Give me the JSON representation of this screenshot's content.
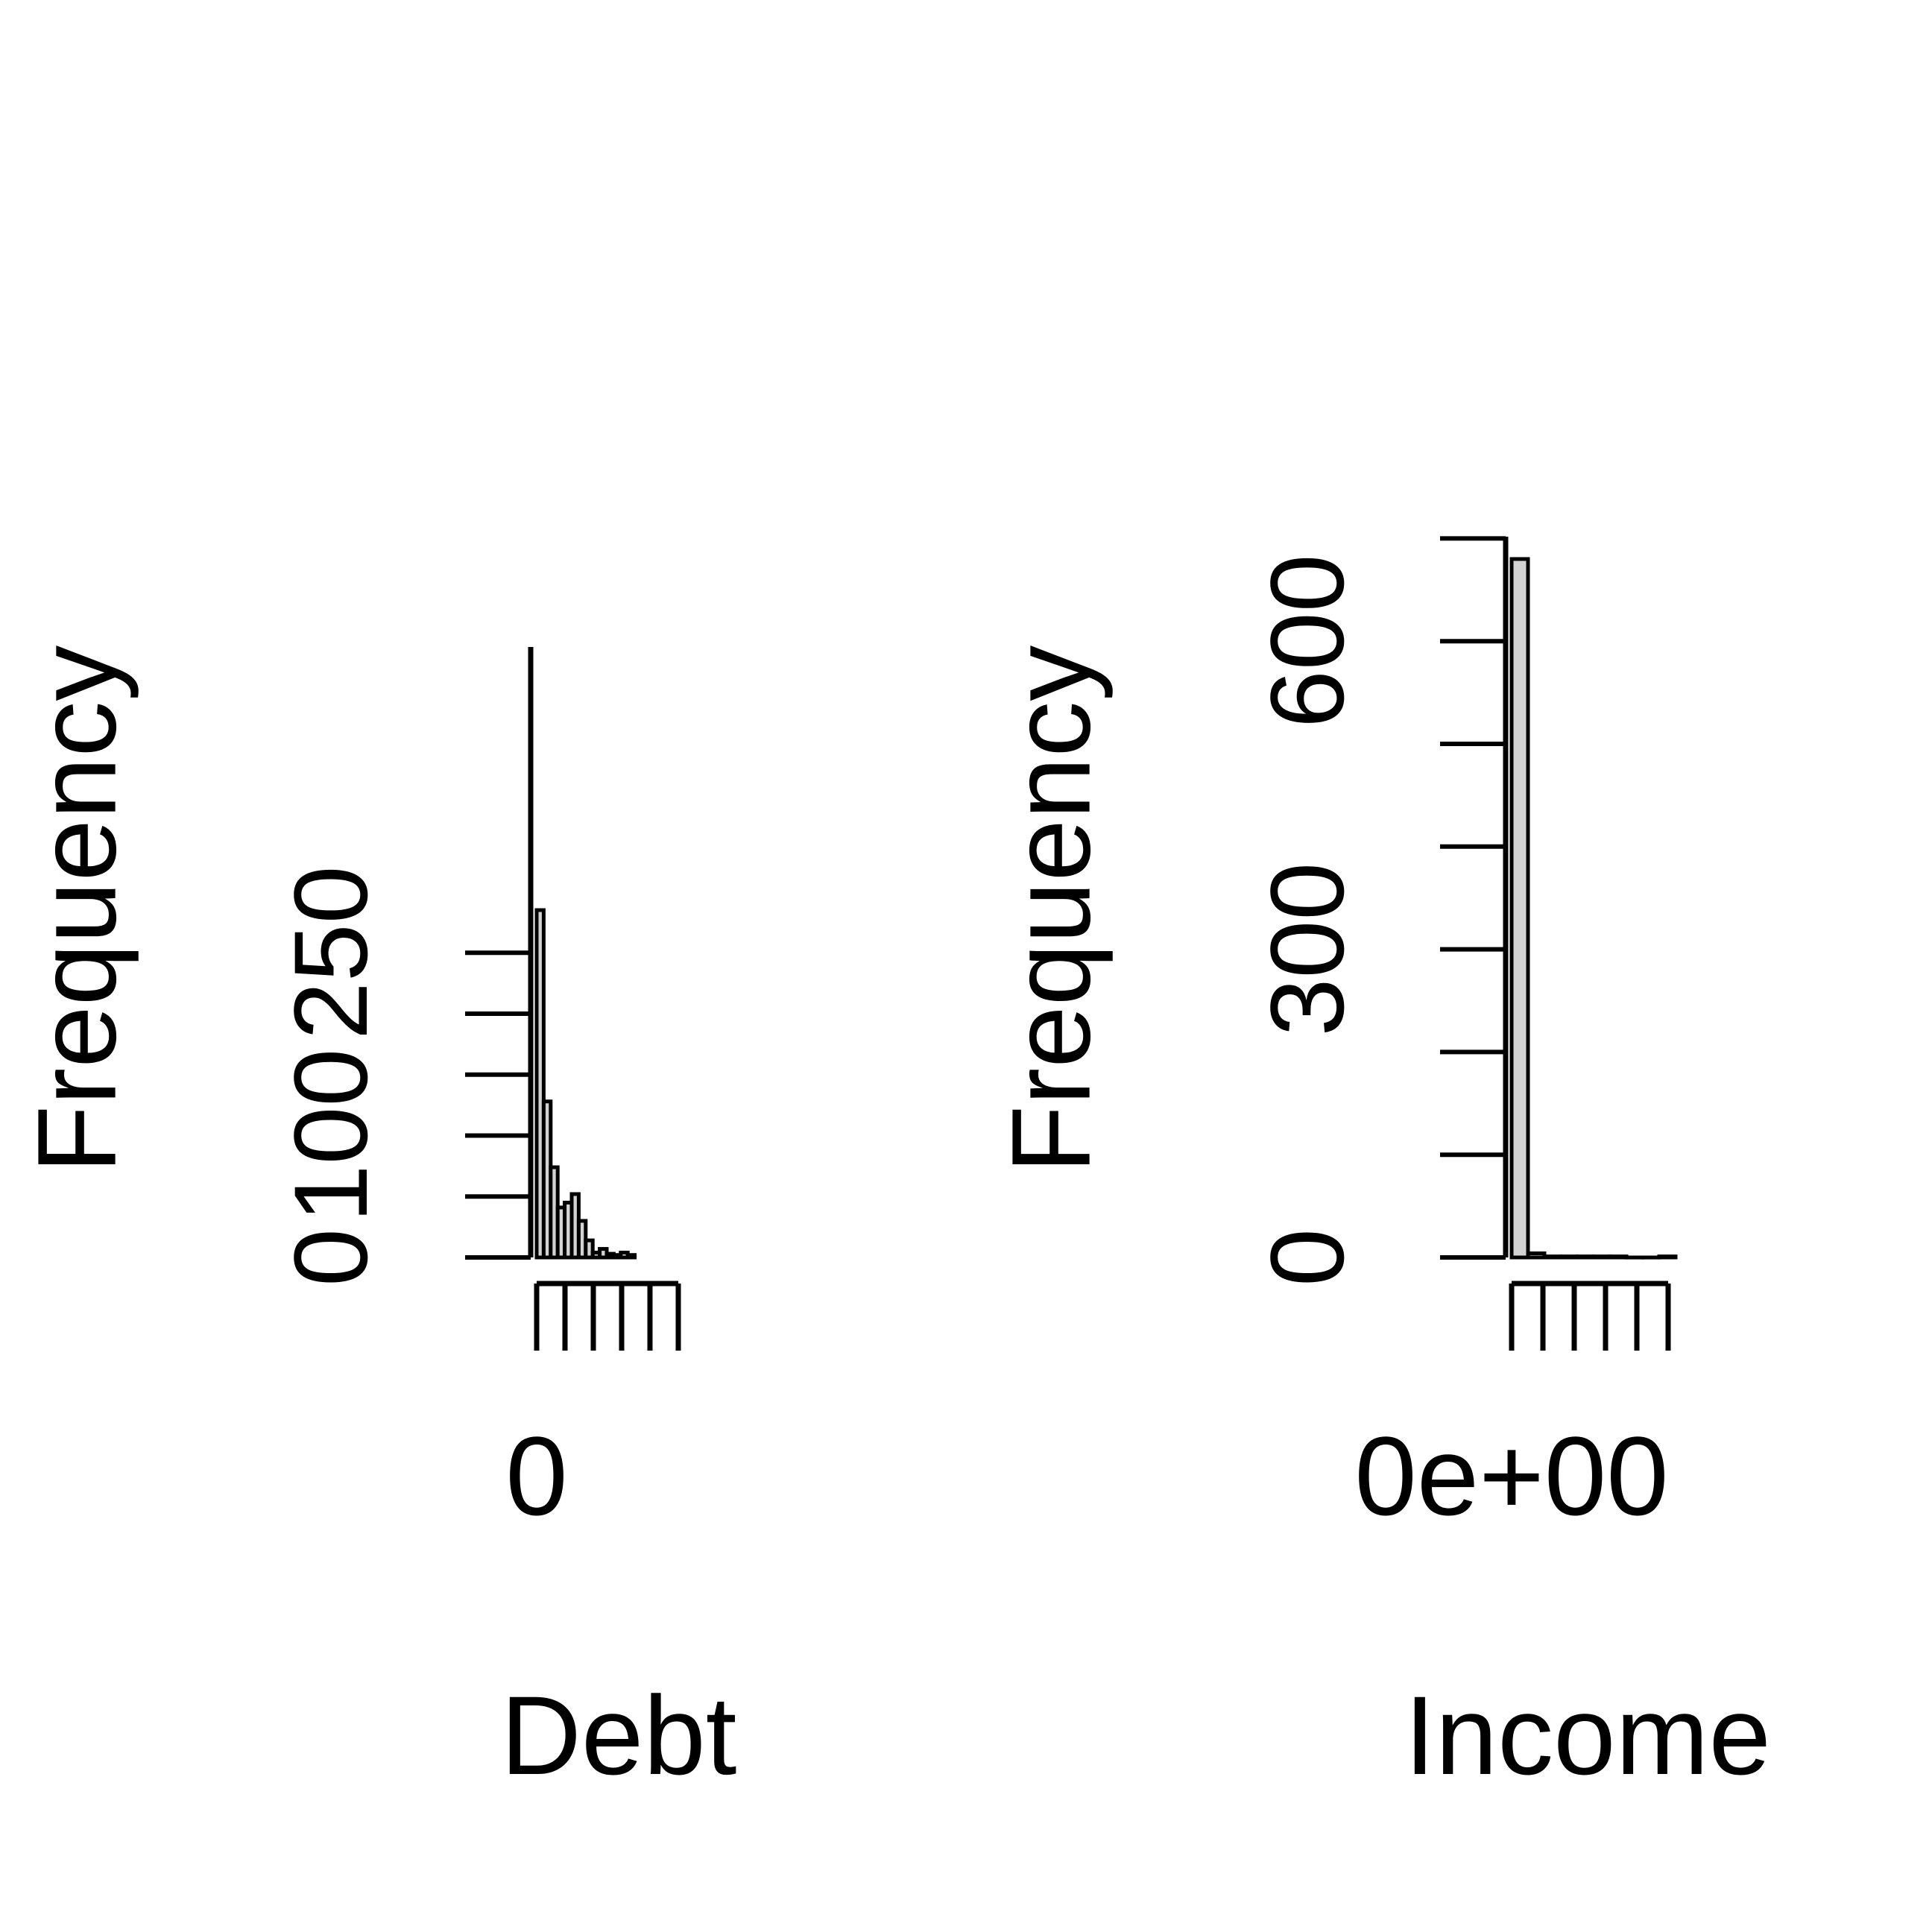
{
  "chart_data": [
    {
      "type": "bar",
      "subtype": "histogram",
      "title": "",
      "xlabel": "Debt",
      "ylabel": "Frequency",
      "y_tick_labels": [
        "0",
        "100",
        "250"
      ],
      "y_ticks": [
        0,
        50,
        100,
        150,
        200,
        250
      ],
      "x_tick_labels": [
        "0",
        "",
        "",
        "",
        "",
        ""
      ],
      "bins": [
        {
          "x0": 0,
          "x1": 1,
          "count": 285
        },
        {
          "x0": 1,
          "x1": 2,
          "count": 128
        },
        {
          "x0": 2,
          "x1": 3,
          "count": 74
        },
        {
          "x0": 3,
          "x1": 4,
          "count": 41
        },
        {
          "x0": 4,
          "x1": 5,
          "count": 45
        },
        {
          "x0": 5,
          "x1": 6,
          "count": 52
        },
        {
          "x0": 6,
          "x1": 7,
          "count": 30
        },
        {
          "x0": 7,
          "x1": 8,
          "count": 14
        },
        {
          "x0": 8,
          "x1": 9,
          "count": 4
        },
        {
          "x0": 9,
          "x1": 10,
          "count": 7
        },
        {
          "x0": 10,
          "x1": 11,
          "count": 3
        },
        {
          "x0": 11,
          "x1": 12,
          "count": 2
        },
        {
          "x0": 12,
          "x1": 13,
          "count": 4
        },
        {
          "x0": 13,
          "x1": 14,
          "count": 2
        }
      ],
      "ylim": [
        0,
        290
      ],
      "bar_color": "#d3d3d3"
    },
    {
      "type": "bar",
      "subtype": "histogram",
      "title": "",
      "xlabel": "Income",
      "ylabel": "Frequency",
      "y_tick_labels": [
        "0",
        "300",
        "600"
      ],
      "y_ticks": [
        0,
        100,
        200,
        300,
        400,
        500,
        600,
        700
      ],
      "x_tick_labels": [
        "0e+00",
        "",
        "",
        "",
        "",
        ""
      ],
      "bins": [
        {
          "x0": 0,
          "x1": 1,
          "count": 680
        },
        {
          "x0": 1,
          "x1": 2,
          "count": 4
        },
        {
          "x0": 2,
          "x1": 3,
          "count": 1
        },
        {
          "x0": 3,
          "x1": 4,
          "count": 1
        },
        {
          "x0": 4,
          "x1": 5,
          "count": 1
        },
        {
          "x0": 5,
          "x1": 6,
          "count": 1
        },
        {
          "x0": 6,
          "x1": 7,
          "count": 1
        },
        {
          "x0": 7,
          "x1": 8,
          "count": 0
        },
        {
          "x0": 8,
          "x1": 9,
          "count": 0
        },
        {
          "x0": 9,
          "x1": 10,
          "count": 1
        }
      ],
      "ylim": [
        0,
        700
      ],
      "bar_color": "#d3d3d3"
    }
  ]
}
